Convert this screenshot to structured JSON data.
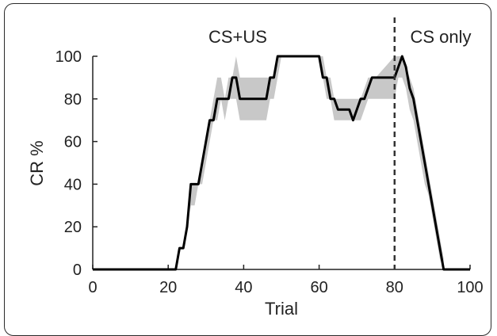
{
  "chart_data": {
    "type": "line",
    "xlabel": "Trial",
    "ylabel": "CR %",
    "xlim": [
      0,
      100
    ],
    "ylim": [
      0,
      100
    ],
    "xticks": [
      0,
      20,
      40,
      60,
      80,
      100
    ],
    "yticks": [
      0,
      20,
      40,
      60,
      80,
      100
    ],
    "phase_boundary_x": 80,
    "annotations": [
      "CS+US",
      "CS only"
    ],
    "series": [
      {
        "style": "mean-line",
        "color": "#000000",
        "x": [
          0,
          22,
          23,
          24,
          25,
          26,
          27,
          28,
          29,
          30,
          31,
          32,
          33,
          34,
          35,
          36,
          37,
          38,
          39,
          40,
          41,
          44,
          45,
          46,
          47,
          48,
          49,
          50,
          51,
          55,
          60,
          61,
          62,
          63,
          64,
          65,
          66,
          67,
          68,
          69,
          70,
          71,
          72,
          73,
          74,
          75,
          76,
          77,
          78,
          79,
          80,
          81,
          82,
          83,
          84,
          85,
          86,
          87,
          88,
          89,
          90,
          91,
          92,
          93,
          94,
          100
        ],
        "y": [
          0,
          0,
          10,
          10,
          20,
          40,
          40,
          40,
          50,
          60,
          70,
          70,
          80,
          80,
          80,
          80,
          90,
          90,
          80,
          80,
          80,
          80,
          80,
          80,
          90,
          90,
          100,
          100,
          100,
          100,
          100,
          90,
          90,
          80,
          80,
          75,
          75,
          75,
          75,
          70,
          75,
          80,
          80,
          85,
          90,
          90,
          90,
          90,
          90,
          90,
          90,
          95,
          100,
          95,
          85,
          80,
          70,
          60,
          50,
          40,
          30,
          20,
          10,
          0,
          0,
          0
        ]
      },
      {
        "style": "error-band",
        "color": "#c8c8c8",
        "x": [
          22,
          23,
          24,
          25,
          26,
          27,
          28,
          29,
          30,
          31,
          32,
          33,
          34,
          35,
          36,
          37,
          38,
          39,
          40,
          41,
          44,
          45,
          46,
          47,
          48,
          49,
          50,
          60,
          61,
          62,
          63,
          64,
          65,
          66,
          67,
          68,
          69,
          70,
          71,
          72,
          73,
          74,
          75,
          80,
          81,
          82,
          83,
          84,
          85,
          86,
          87,
          88,
          89,
          90,
          91,
          92,
          93
        ],
        "upper": [
          0,
          10,
          10,
          20,
          40,
          40,
          40,
          50,
          60,
          70,
          80,
          90,
          90,
          80,
          90,
          90,
          100,
          90,
          90,
          90,
          90,
          90,
          90,
          90,
          90,
          100,
          100,
          100,
          100,
          90,
          90,
          80,
          80,
          80,
          80,
          80,
          80,
          80,
          80,
          85,
          90,
          90,
          90,
          100,
          100,
          100,
          95,
          90,
          85,
          75,
          65,
          55,
          45,
          35,
          25,
          15,
          5
        ],
        "lower": [
          0,
          10,
          10,
          20,
          30,
          30,
          40,
          40,
          50,
          60,
          70,
          70,
          80,
          70,
          80,
          80,
          80,
          70,
          70,
          70,
          70,
          70,
          70,
          80,
          80,
          90,
          100,
          100,
          90,
          80,
          80,
          70,
          70,
          70,
          70,
          70,
          70,
          70,
          70,
          75,
          80,
          80,
          80,
          80,
          90,
          90,
          85,
          75,
          70,
          60,
          50,
          40,
          35,
          25,
          15,
          5,
          0
        ]
      }
    ]
  }
}
